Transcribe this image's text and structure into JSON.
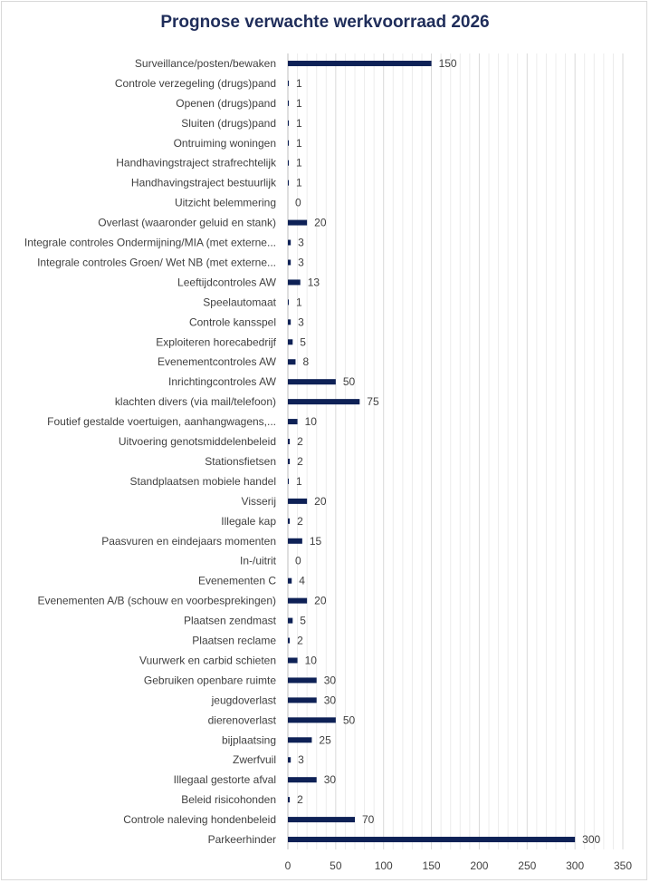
{
  "chart_data": {
    "type": "bar",
    "orientation": "horizontal",
    "title": "Prognose verwachte werkvoorraad 2026",
    "xlabel": "",
    "ylabel": "",
    "xlim": [
      0,
      350
    ],
    "xticks": [
      0,
      50,
      100,
      150,
      200,
      250,
      300,
      350
    ],
    "grid": true,
    "bar_color": "#0e2156",
    "categories": [
      "Surveillance/posten/bewaken",
      "Controle verzegeling (drugs)pand",
      "Openen (drugs)pand",
      "Sluiten (drugs)pand",
      "Ontruiming woningen",
      "Handhavingstraject strafrechtelijk",
      "Handhavingstraject bestuurlijk",
      "Uitzicht belemmering",
      "Overlast (waaronder geluid en stank)",
      "Integrale controles Ondermijning/MIA (met externe...",
      "Integrale controles Groen/ Wet NB (met externe...",
      "Leeftijdcontroles AW",
      "Speelautomaat",
      "Controle kansspel",
      "Exploiteren horecabedrijf",
      "Evenementcontroles AW",
      "Inrichtingcontroles AW",
      "klachten divers (via mail/telefoon)",
      "Foutief gestalde voertuigen, aanhangwagens,...",
      "Uitvoering genotsmiddelenbeleid",
      "Stationsfietsen",
      "Standplaatsen mobiele handel",
      "Visserij",
      "Illegale kap",
      "Paasvuren en eindejaars momenten",
      "In-/uitrit",
      "Evenementen C",
      "Evenementen A/B (schouw en voorbesprekingen)",
      "Plaatsen zendmast",
      "Plaatsen reclame",
      "Vuurwerk en carbid schieten",
      "Gebruiken openbare ruimte",
      "jeugdoverlast",
      "dierenoverlast",
      "bijplaatsing",
      "Zwerfvuil",
      "Illegaal gestorte afval",
      "Beleid risicohonden",
      "Controle naleving hondenbeleid",
      "Parkeerhinder"
    ],
    "values": [
      150,
      1,
      1,
      1,
      1,
      1,
      1,
      0,
      20,
      3,
      3,
      13,
      1,
      3,
      5,
      8,
      50,
      75,
      10,
      2,
      2,
      1,
      20,
      2,
      15,
      0,
      4,
      20,
      5,
      2,
      10,
      30,
      30,
      50,
      25,
      3,
      30,
      2,
      70,
      300
    ]
  }
}
